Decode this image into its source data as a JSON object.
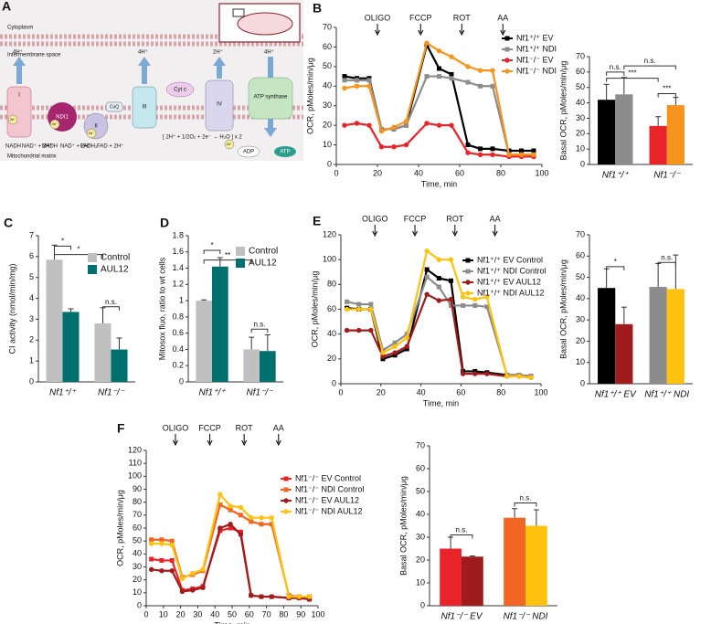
{
  "diagram": {
    "panel": "A",
    "regions": [
      "Cytoplasm",
      "Intermembrane space",
      "Mitochondrial matrix"
    ],
    "complexes": [
      "I",
      "NDI1",
      "II",
      "CoQ",
      "III",
      "Cyt c",
      "IV",
      "ATP synthase"
    ],
    "protons": [
      "4H⁺",
      "4H⁺",
      "2H⁺",
      "4H⁺"
    ],
    "electrons": [
      "2e⁻",
      "2e⁻",
      "2e⁻",
      "2e⁻"
    ],
    "substrates": [
      "NADH",
      "NAD⁺ + 2H⁺",
      "NADH",
      "NAD⁺ + 2H⁺",
      "FADH₂",
      "FAD + 2H⁺"
    ],
    "reaction": "[ 2H⁺ + 1/2O₂ + 2e⁻ → H₂O ] x 2",
    "atp": [
      "ADP",
      "ATP"
    ]
  },
  "chart_data": [
    {
      "type": "line",
      "panel": "B",
      "xlabel": "Time, min",
      "ylabel": "OCR, pMoles/min/μg",
      "xlim": [
        0,
        100
      ],
      "xticks": [
        0,
        20,
        40,
        60,
        80,
        100
      ],
      "ylim": [
        0,
        70
      ],
      "yticks": [
        0,
        10,
        20,
        30,
        40,
        50,
        60,
        70
      ],
      "legend": "upper right",
      "annotations": [
        {
          "text": "OLIGO",
          "x": 20
        },
        {
          "text": "FCCP",
          "x": 41
        },
        {
          "text": "ROT",
          "x": 61
        },
        {
          "text": "AA",
          "x": 81
        }
      ],
      "x": [
        4,
        10,
        16,
        22,
        28,
        34,
        44,
        50,
        56,
        64,
        70,
        76,
        84,
        90,
        96
      ],
      "series": [
        {
          "name": "Nf1⁺/⁺ EV",
          "color": "#000000",
          "marker": "square",
          "values": [
            45,
            44,
            44,
            18,
            18,
            20,
            61,
            49,
            46,
            10,
            8,
            8,
            7,
            7,
            7
          ]
        },
        {
          "name": "Nf1⁺/⁺ NDI",
          "color": "#8c8c8c",
          "marker": "square",
          "values": [
            43,
            43,
            43,
            18,
            18,
            20,
            45,
            45,
            44,
            42,
            40,
            40,
            5,
            5,
            5
          ]
        },
        {
          "name": "Nf1⁻/⁻ EV",
          "color": "#e8242a",
          "marker": "circle",
          "values": [
            20,
            21,
            20,
            9,
            9,
            10,
            21,
            20,
            20,
            6,
            5,
            5,
            4,
            4,
            4
          ]
        },
        {
          "name": "Nf1⁻/⁻ NDI",
          "color": "#f7941d",
          "marker": "circle",
          "values": [
            39,
            40,
            40,
            17,
            19,
            22,
            62,
            58,
            55,
            50,
            48,
            48,
            5,
            5,
            5
          ]
        }
      ]
    },
    {
      "type": "bar",
      "ylabel": "Basal OCR, pMoles/min/μg",
      "ylim": [
        0,
        70
      ],
      "yticks": [
        0,
        10,
        20,
        30,
        40,
        50,
        60,
        70
      ],
      "categories": [
        "Nf1⁺/⁺",
        "Nf1⁻/⁻"
      ],
      "annotations": [
        "n.s.",
        "n.s.",
        "***",
        "***"
      ],
      "series": [
        {
          "colors": [
            "#000000",
            "#e8242a"
          ],
          "values": [
            42,
            25
          ],
          "errors": [
            10,
            6
          ]
        },
        {
          "colors": [
            "#8c8c8c",
            "#f7941d"
          ],
          "values": [
            45.5,
            38.5
          ],
          "errors": [
            11,
            5
          ]
        }
      ]
    },
    {
      "type": "bar",
      "panel": "C",
      "ylabel": "CI activity (nmol/min/mg)",
      "ylim": [
        0,
        7
      ],
      "yticks": [
        0,
        1,
        2,
        3,
        4,
        5,
        6,
        7
      ],
      "categories": [
        "Nf1⁺/⁺",
        "Nf1⁻/⁻"
      ],
      "annotations": [
        "*",
        "*",
        "n.s."
      ],
      "legend": "upper right",
      "series": [
        {
          "name": "Control",
          "color": "#c0c0c0",
          "values": [
            5.85,
            2.8
          ],
          "errors": [
            0.7,
            0.75
          ]
        },
        {
          "name": "AUL12",
          "color": "#00706e",
          "values": [
            3.35,
            1.55
          ],
          "errors": [
            0.15,
            0.55
          ]
        }
      ]
    },
    {
      "type": "bar",
      "panel": "D",
      "ylabel": "Mitosox fluo, ratio to wt cells",
      "ylim": [
        0,
        1.8
      ],
      "yticks": [
        0,
        0.2,
        0.4,
        0.6,
        0.8,
        1,
        1.2,
        1.4,
        1.6,
        1.8
      ],
      "categories": [
        "Nf1⁺/⁺",
        "Nf1⁻/⁻"
      ],
      "annotations": [
        "*",
        "**",
        "n.s."
      ],
      "legend": "upper right",
      "series": [
        {
          "name": "Control",
          "color": "#c0c0c0",
          "values": [
            1.0,
            0.4
          ],
          "errors": [
            0.01,
            0.15
          ]
        },
        {
          "name": "AUL12",
          "color": "#00706e",
          "values": [
            1.42,
            0.38
          ],
          "errors": [
            0.11,
            0.2
          ]
        }
      ]
    },
    {
      "type": "line",
      "panel": "E",
      "xlabel": "Time, min",
      "ylabel": "OCR, pMoles/min/μg",
      "xlim": [
        0,
        100
      ],
      "xticks": [
        0,
        20,
        40,
        60,
        80,
        100
      ],
      "ylim": [
        0,
        120
      ],
      "yticks": [
        0,
        20,
        40,
        60,
        80,
        100,
        120
      ],
      "legend": "upper right",
      "annotations": [
        {
          "text": "OLIGO",
          "x": 17
        },
        {
          "text": "FCCP",
          "x": 37
        },
        {
          "text": "ROT",
          "x": 57
        },
        {
          "text": "AA",
          "x": 77
        }
      ],
      "x": [
        3,
        9,
        15,
        21,
        27,
        33,
        43,
        49,
        55,
        61,
        67,
        73,
        83,
        89,
        95
      ],
      "series": [
        {
          "name": "Nf1⁺/⁺ EV Control",
          "color": "#000000",
          "marker": "square",
          "values": [
            61,
            60,
            60,
            20,
            23,
            28,
            92,
            85,
            83,
            10,
            10,
            9,
            7,
            7,
            6
          ]
        },
        {
          "name": "Nf1⁺/⁺ NDI Control",
          "color": "#8c8c8c",
          "marker": "square",
          "values": [
            66,
            64,
            64,
            27,
            33,
            40,
            86,
            78,
            63,
            63,
            63,
            62,
            7,
            7,
            6
          ]
        },
        {
          "name": "Nf1⁺/⁺ EV AUL12",
          "color": "#a01c1c",
          "marker": "circle",
          "values": [
            43,
            43,
            43,
            22,
            25,
            30,
            72,
            67,
            68,
            8,
            8,
            8,
            6,
            6,
            5
          ]
        },
        {
          "name": "Nf1⁺/⁺ NDI AUL12",
          "color": "#ffc20e",
          "marker": "circle",
          "values": [
            60,
            60,
            60,
            25,
            30,
            37,
            107,
            100,
            100,
            70,
            68,
            70,
            6,
            6,
            5
          ]
        }
      ]
    },
    {
      "type": "bar",
      "ylabel": "Basal OCR, pMoles/min/μg",
      "ylim": [
        0,
        70
      ],
      "yticks": [
        0,
        10,
        20,
        30,
        40,
        50,
        60,
        70
      ],
      "categories": [
        "Nf1⁺/⁺ EV",
        "Nf1⁺/⁺ NDI"
      ],
      "annotations": [
        "*",
        "n.s."
      ],
      "series": [
        {
          "colors": [
            "#000000",
            "#8c8c8c"
          ],
          "values": [
            45,
            45.5
          ],
          "errors": [
            9,
            11
          ]
        },
        {
          "colors": [
            "#a01c1c",
            "#ffc20e"
          ],
          "values": [
            28,
            44.5
          ],
          "errors": [
            8,
            16
          ]
        }
      ]
    },
    {
      "type": "line",
      "panel": "F",
      "xlabel": "Time, min",
      "ylabel": "OCR, pMoles/min/μg",
      "xlim": [
        0,
        100
      ],
      "xticks": [
        0,
        10,
        20,
        30,
        40,
        50,
        60,
        70,
        80,
        90,
        100
      ],
      "ylim": [
        0,
        120
      ],
      "yticks": [
        0,
        10,
        20,
        30,
        40,
        50,
        60,
        70,
        80,
        90,
        100,
        110,
        120
      ],
      "legend": "upper right",
      "annotations": [
        {
          "text": "OLIGO",
          "x": 17
        },
        {
          "text": "FCCP",
          "x": 37
        },
        {
          "text": "ROT",
          "x": 57
        },
        {
          "text": "AA",
          "x": 77
        }
      ],
      "x": [
        3,
        9,
        15,
        21,
        27,
        33,
        43,
        49,
        55,
        61,
        67,
        73,
        83,
        89,
        95
      ],
      "series": [
        {
          "name": "Nf1⁻/⁻ EV Control",
          "color": "#e8242a",
          "marker": "square",
          "values": [
            36,
            35,
            35,
            12,
            13,
            15,
            58,
            60,
            57,
            8,
            7,
            7,
            6,
            6,
            5
          ]
        },
        {
          "name": "Nf1⁻/⁻ NDI Control",
          "color": "#f26522",
          "marker": "square",
          "values": [
            51,
            51,
            50,
            22,
            24,
            27,
            78,
            74,
            70,
            65,
            63,
            63,
            8,
            7,
            7
          ]
        },
        {
          "name": "Nf1⁻/⁻ EV AUL12",
          "color": "#a01c1c",
          "marker": "circle",
          "values": [
            28,
            27,
            27,
            11,
            12,
            14,
            60,
            63,
            55,
            8,
            7,
            7,
            6,
            6,
            5
          ]
        },
        {
          "name": "Nf1⁻/⁻ NDI AUL12",
          "color": "#ffc20e",
          "marker": "circle",
          "values": [
            48,
            48,
            47,
            21,
            25,
            28,
            86,
            77,
            76,
            68,
            68,
            68,
            7,
            7,
            7
          ]
        }
      ]
    },
    {
      "type": "bar",
      "ylabel": "Basal OCR, pMoles/min/μg",
      "ylim": [
        0,
        70
      ],
      "yticks": [
        0,
        10,
        20,
        30,
        40,
        50,
        60,
        70
      ],
      "categories": [
        "Nf1⁻/⁻ EV",
        "Nf1⁻/⁻ NDI"
      ],
      "annotations": [
        "n.s.",
        "n.s."
      ],
      "series": [
        {
          "colors": [
            "#e8242a",
            "#f26522"
          ],
          "values": [
            25,
            38.5
          ],
          "errors": [
            5,
            4
          ]
        },
        {
          "colors": [
            "#a01c1c",
            "#ffc20e"
          ],
          "values": [
            21.5,
            35
          ],
          "errors": [
            0.3,
            7
          ]
        }
      ]
    }
  ]
}
